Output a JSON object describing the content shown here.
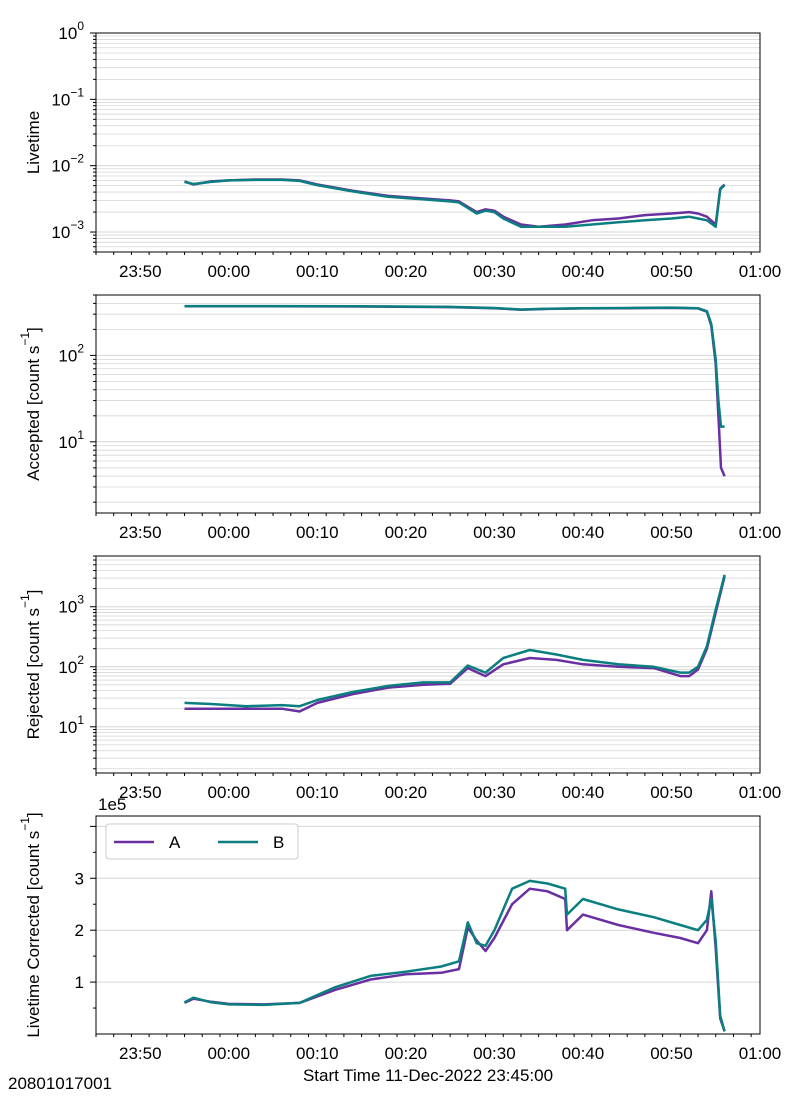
{
  "figure": {
    "obs_id": "20801017001",
    "xlabel": "Start Time 11-Dec-2022 23:45:00"
  },
  "colors": {
    "A": "#6a2fa0",
    "B": "#0b7f7f",
    "grid": "#d6d6d6"
  },
  "chart_data": [
    {
      "type": "line",
      "ylabel": "Livetime",
      "yscale": "log",
      "ylim": [
        0.0005,
        1
      ],
      "ytick_labels": [
        {
          "base": "10",
          "exp": "0",
          "value": 1
        },
        {
          "base": "10",
          "exp": "−1",
          "value": 0.1
        },
        {
          "base": "10",
          "exp": "−2",
          "value": 0.01
        },
        {
          "base": "10",
          "exp": "−3",
          "value": 0.001
        }
      ],
      "x_tick_labels": [
        "23:50",
        "00:00",
        "00:10",
        "00:20",
        "00:30",
        "00:40",
        "00:50",
        "01:00"
      ],
      "xlim": [
        "23:45",
        "01:00"
      ],
      "grid": true,
      "series": [
        {
          "name": "A",
          "x": [
            "23:55",
            "23:56",
            "23:58",
            "00:00",
            "00:03",
            "00:06",
            "00:08",
            "00:10",
            "00:14",
            "00:18",
            "00:22",
            "00:25",
            "00:26",
            "00:27",
            "00:28",
            "00:29",
            "00:30",
            "00:31",
            "00:33",
            "00:35",
            "00:38",
            "00:41",
            "00:44",
            "00:47",
            "00:50",
            "00:52",
            "00:53",
            "00:54",
            "00:55",
            "00:55.5",
            "00:56"
          ],
          "values": [
            0.0058,
            0.0052,
            0.0058,
            0.006,
            0.0062,
            0.0062,
            0.006,
            0.0052,
            0.0042,
            0.0035,
            0.0032,
            0.003,
            0.0029,
            0.0024,
            0.002,
            0.0022,
            0.0021,
            0.0017,
            0.0013,
            0.0012,
            0.0013,
            0.0015,
            0.0016,
            0.0018,
            0.0019,
            0.002,
            0.0019,
            0.0017,
            0.0013,
            0.0045,
            0.0052
          ]
        },
        {
          "name": "B",
          "x": [
            "23:55",
            "23:56",
            "23:58",
            "00:00",
            "00:03",
            "00:06",
            "00:08",
            "00:10",
            "00:14",
            "00:18",
            "00:22",
            "00:25",
            "00:26",
            "00:27",
            "00:28",
            "00:29",
            "00:30",
            "00:31",
            "00:33",
            "00:35",
            "00:38",
            "00:41",
            "00:44",
            "00:47",
            "00:50",
            "00:52",
            "00:53",
            "00:54",
            "00:55",
            "00:55.5",
            "00:56"
          ],
          "values": [
            0.0057,
            0.0053,
            0.0057,
            0.006,
            0.0061,
            0.0061,
            0.0059,
            0.0051,
            0.0041,
            0.0034,
            0.0031,
            0.0029,
            0.0028,
            0.0023,
            0.0019,
            0.0021,
            0.002,
            0.0016,
            0.0012,
            0.0012,
            0.0012,
            0.0013,
            0.0014,
            0.0015,
            0.0016,
            0.0017,
            0.0016,
            0.0015,
            0.0012,
            0.0044,
            0.0051
          ]
        }
      ]
    },
    {
      "type": "line",
      "ylabel": "Accepted [count s",
      "ylabel_sup": "−1",
      "ylabel_end": "]",
      "yscale": "log",
      "ylim": [
        1.5,
        500
      ],
      "ytick_labels": [
        {
          "base": "10",
          "exp": "2",
          "value": 100
        },
        {
          "base": "10",
          "exp": "1",
          "value": 10
        }
      ],
      "x_tick_labels": [
        "23:50",
        "00:00",
        "00:10",
        "00:20",
        "00:30",
        "00:40",
        "00:50",
        "01:00"
      ],
      "xlim": [
        "23:45",
        "01:00"
      ],
      "grid": true,
      "series": [
        {
          "name": "A",
          "x": [
            "23:55",
            "00:05",
            "00:15",
            "00:25",
            "00:30",
            "00:33",
            "00:36",
            "00:40",
            "00:45",
            "00:50",
            "00:53",
            "00:54",
            "00:54.5",
            "00:55",
            "00:55.3",
            "00:55.6",
            "00:56"
          ],
          "values": [
            370,
            370,
            368,
            362,
            352,
            338,
            345,
            350,
            352,
            355,
            350,
            320,
            220,
            80,
            20,
            5,
            4
          ]
        },
        {
          "name": "B",
          "x": [
            "23:55",
            "00:05",
            "00:15",
            "00:25",
            "00:30",
            "00:33",
            "00:36",
            "00:40",
            "00:45",
            "00:50",
            "00:53",
            "00:54",
            "00:54.5",
            "00:55",
            "00:55.3",
            "00:55.6",
            "00:56"
          ],
          "values": [
            372,
            372,
            370,
            364,
            354,
            340,
            347,
            352,
            354,
            357,
            352,
            325,
            230,
            90,
            30,
            15,
            15
          ]
        }
      ]
    },
    {
      "type": "line",
      "ylabel": "Rejected [count s",
      "ylabel_sup": "−1",
      "ylabel_end": "]",
      "yscale": "log",
      "ylim": [
        1.7,
        7000
      ],
      "ytick_labels": [
        {
          "base": "10",
          "exp": "3",
          "value": 1000
        },
        {
          "base": "10",
          "exp": "2",
          "value": 100
        },
        {
          "base": "10",
          "exp": "1",
          "value": 10
        }
      ],
      "x_tick_labels": [
        "23:50",
        "00:00",
        "00:10",
        "00:20",
        "00:30",
        "00:40",
        "00:50",
        "01:00"
      ],
      "xlim": [
        "23:45",
        "01:00"
      ],
      "grid": true,
      "series": [
        {
          "name": "A",
          "x": [
            "23:55",
            "23:58",
            "00:02",
            "00:06",
            "00:08",
            "00:10",
            "00:14",
            "00:18",
            "00:22",
            "00:25",
            "00:27",
            "00:29",
            "00:31",
            "00:34",
            "00:37",
            "00:40",
            "00:44",
            "00:48",
            "00:51",
            "00:52",
            "00:53",
            "00:54",
            "00:55",
            "00:56"
          ],
          "values": [
            20,
            20,
            20,
            20,
            18,
            25,
            35,
            45,
            50,
            52,
            95,
            70,
            110,
            140,
            130,
            110,
            100,
            95,
            70,
            70,
            90,
            200,
            800,
            3200
          ]
        },
        {
          "name": "B",
          "x": [
            "23:55",
            "23:58",
            "00:02",
            "00:06",
            "00:08",
            "00:10",
            "00:14",
            "00:18",
            "00:22",
            "00:25",
            "00:27",
            "00:29",
            "00:31",
            "00:34",
            "00:37",
            "00:40",
            "00:44",
            "00:48",
            "00:51",
            "00:52",
            "00:53",
            "00:54",
            "00:55",
            "00:56"
          ],
          "values": [
            25,
            24,
            22,
            23,
            22,
            28,
            38,
            48,
            55,
            55,
            105,
            80,
            140,
            190,
            160,
            130,
            110,
            100,
            80,
            80,
            100,
            220,
            900,
            3400
          ]
        }
      ]
    },
    {
      "type": "line",
      "ylabel": "Livetime Corrected [count s",
      "ylabel_sup": "−1",
      "ylabel_end": "]",
      "yscale": "linear",
      "offset_text": "1e5",
      "ylim": [
        0,
        420000
      ],
      "ytick_labels": [
        {
          "label": "1",
          "value": 100000
        },
        {
          "label": "2",
          "value": 200000
        },
        {
          "label": "3",
          "value": 300000
        }
      ],
      "x_tick_labels": [
        "23:50",
        "00:00",
        "00:10",
        "00:20",
        "00:30",
        "00:40",
        "00:50",
        "01:00"
      ],
      "xlim": [
        "23:45",
        "01:00"
      ],
      "grid": true,
      "legend": {
        "placement": "top-left",
        "entries": [
          "A",
          "B"
        ]
      },
      "series": [
        {
          "name": "A",
          "x": [
            "23:55",
            "23:56",
            "23:58",
            "00:00",
            "00:04",
            "00:08",
            "00:12",
            "00:16",
            "00:20",
            "00:24",
            "00:26",
            "00:27",
            "00:28",
            "00:29",
            "00:30",
            "00:32",
            "00:34",
            "00:36",
            "00:38",
            "00:38.2",
            "00:40",
            "00:44",
            "00:48",
            "00:51",
            "00:53",
            "00:54",
            "00:54.5",
            "00:55",
            "00:55.5",
            "00:56"
          ],
          "values": [
            60000,
            68000,
            62000,
            58000,
            57000,
            60000,
            85000,
            105000,
            115000,
            118000,
            125000,
            205000,
            180000,
            160000,
            185000,
            250000,
            280000,
            275000,
            260000,
            200000,
            230000,
            210000,
            195000,
            185000,
            175000,
            200000,
            275000,
            165000,
            30000,
            5000
          ]
        },
        {
          "name": "B",
          "x": [
            "23:55",
            "23:56",
            "23:58",
            "00:00",
            "00:04",
            "00:08",
            "00:12",
            "00:16",
            "00:20",
            "00:24",
            "00:26",
            "00:27",
            "00:28",
            "00:29",
            "00:30",
            "00:32",
            "00:34",
            "00:36",
            "00:38",
            "00:38.2",
            "00:40",
            "00:44",
            "00:48",
            "00:51",
            "00:53",
            "00:54",
            "00:54.5",
            "00:55",
            "00:55.5",
            "00:56"
          ],
          "values": [
            61000,
            70000,
            61000,
            57000,
            56000,
            60000,
            90000,
            112000,
            120000,
            130000,
            140000,
            215000,
            175000,
            170000,
            200000,
            280000,
            295000,
            290000,
            280000,
            230000,
            260000,
            240000,
            225000,
            210000,
            200000,
            220000,
            260000,
            180000,
            35000,
            5000
          ]
        }
      ]
    }
  ]
}
